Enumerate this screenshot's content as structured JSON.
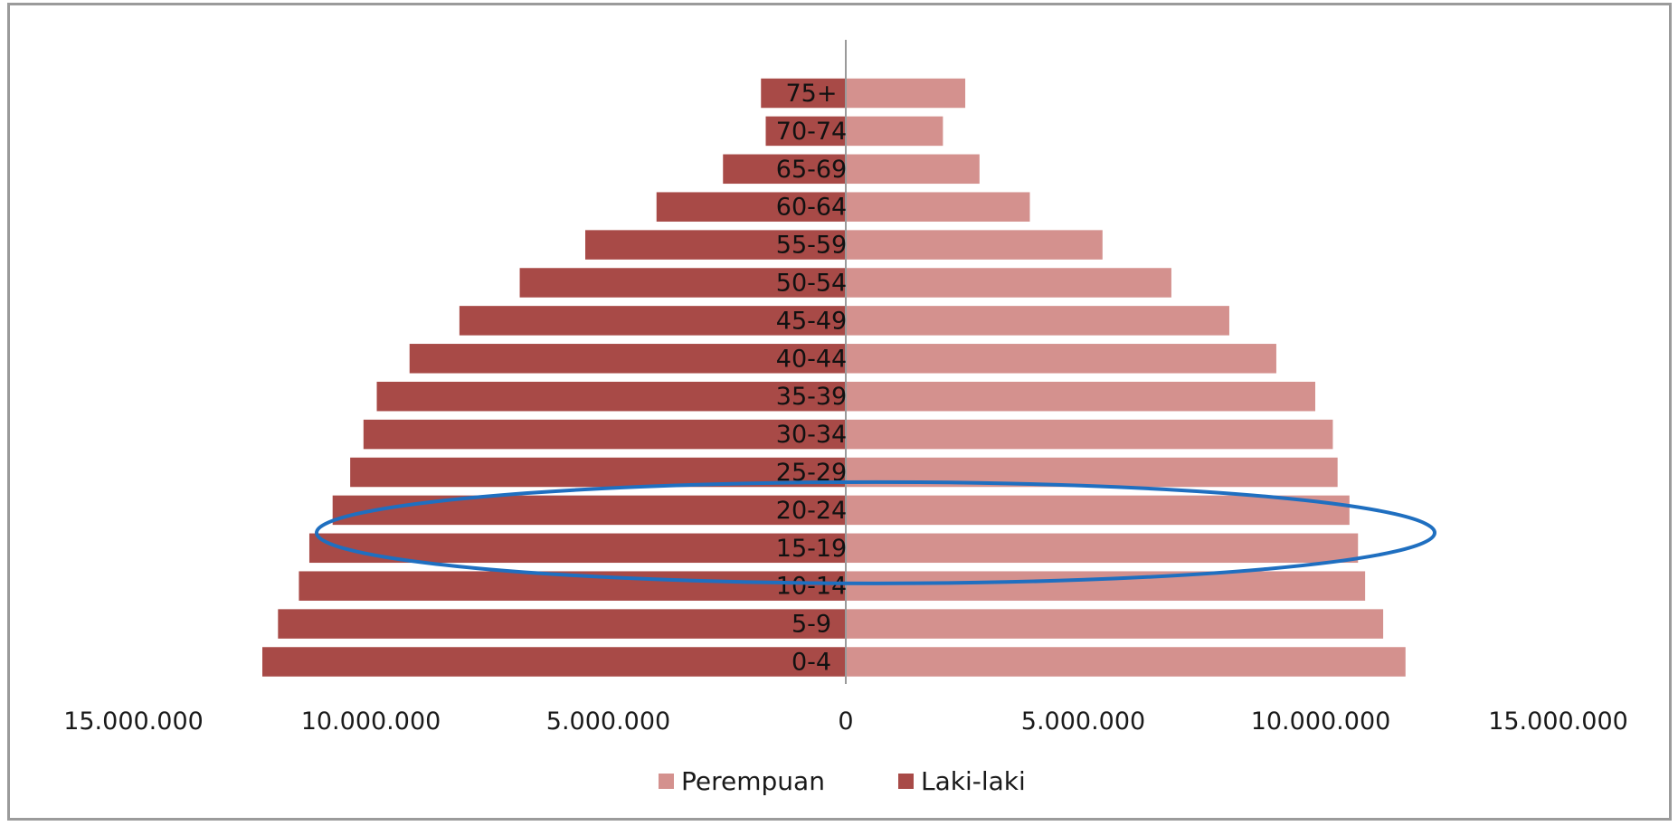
{
  "chart_data": {
    "type": "bar",
    "orientation": "horizontal",
    "subtype": "population-pyramid",
    "categories": [
      "0-4",
      "5-9",
      "10-14",
      "15-19",
      "20-24",
      "25-29",
      "30-34",
      "35-39",
      "40-44",
      "45-49",
      "50-54",
      "55-59",
      "60-64",
      "65-69",
      "70-74",
      "75+"
    ],
    "series": [
      {
        "name": "Perempuan",
        "color": "#d4918e",
        "values": [
          11800000,
          11330000,
          10950000,
          10800000,
          10620000,
          10370000,
          10270000,
          9900000,
          9080000,
          8090000,
          6870000,
          5420000,
          3890000,
          2830000,
          2060000,
          2530000
        ]
      },
      {
        "name": "Laki-laki",
        "color": "#a84a47",
        "values": [
          12300000,
          11970000,
          11530000,
          11310000,
          10820000,
          10450000,
          10170000,
          9890000,
          9200000,
          8150000,
          6880000,
          5500000,
          4000000,
          2600000,
          1700000,
          1800000
        ]
      }
    ],
    "xlim": [
      -15000000,
      15000000
    ],
    "x_ticks": [
      -15000000,
      -10000000,
      -5000000,
      0,
      5000000,
      10000000,
      15000000
    ],
    "x_tick_labels": [
      "15.000.000",
      "10.000.000",
      "5.000.000",
      "0",
      "5.000.000",
      "10.000.000",
      "15.000.000"
    ],
    "title": "",
    "xlabel": "",
    "ylabel": "",
    "grid": false,
    "legend_position": "bottom",
    "annotation": {
      "shape": "ellipse",
      "color": "#1f6fc0",
      "highlights": [
        "15-19",
        "20-24"
      ]
    }
  }
}
